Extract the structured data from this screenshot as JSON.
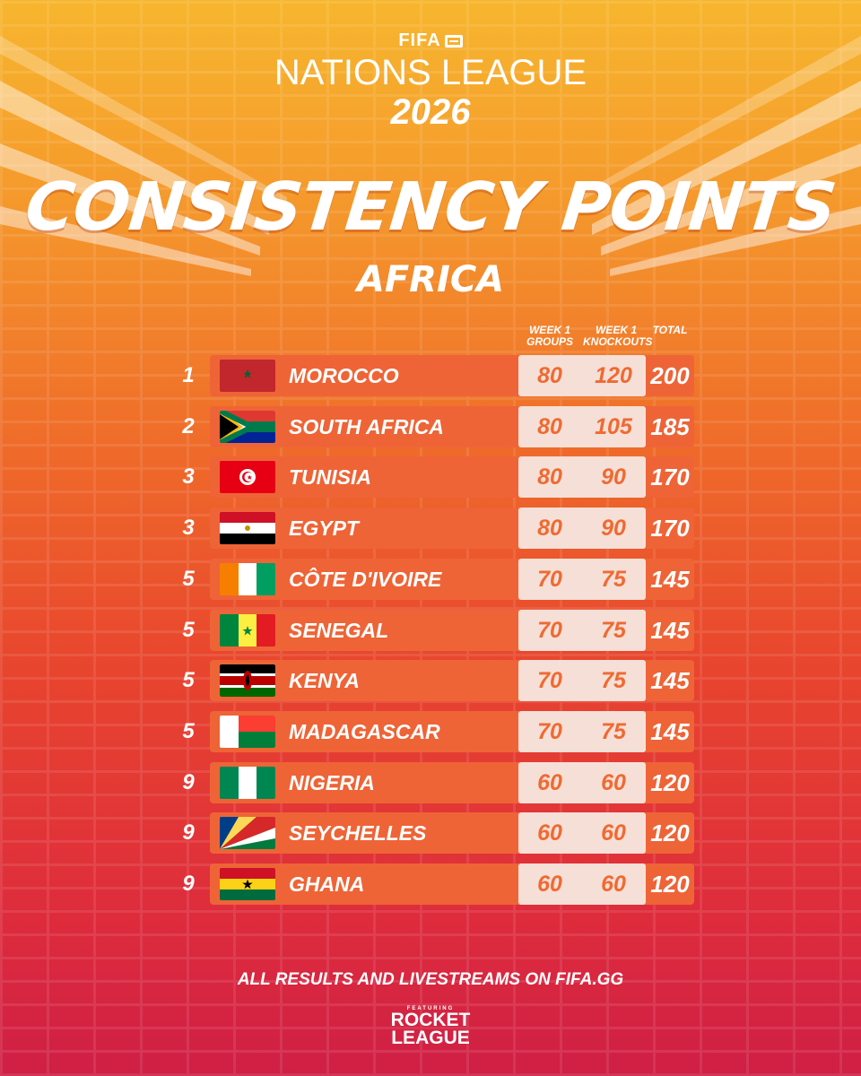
{
  "header": {
    "brand": "FIFA",
    "league_name": "NATIONS LEAGUE",
    "year": "2026",
    "title": "CONSISTENCY POINTS",
    "region": "AFRICA"
  },
  "columns": {
    "groups": "WEEK 1 GROUPS",
    "knockouts": "WEEK 1 KNOCKOUTS",
    "total": "TOTAL"
  },
  "rows": [
    {
      "rank": "1",
      "country": "MOROCCO",
      "flag": "morocco-flag-icon",
      "groups": "80",
      "knockouts": "120",
      "total": "200"
    },
    {
      "rank": "2",
      "country": "SOUTH AFRICA",
      "flag": "south-africa-flag-icon",
      "groups": "80",
      "knockouts": "105",
      "total": "185"
    },
    {
      "rank": "3",
      "country": "TUNISIA",
      "flag": "tunisia-flag-icon",
      "groups": "80",
      "knockouts": "90",
      "total": "170"
    },
    {
      "rank": "3",
      "country": "EGYPT",
      "flag": "egypt-flag-icon",
      "groups": "80",
      "knockouts": "90",
      "total": "170"
    },
    {
      "rank": "5",
      "country": "CÔTE D'IVOIRE",
      "flag": "cote-divoire-flag-icon",
      "groups": "70",
      "knockouts": "75",
      "total": "145"
    },
    {
      "rank": "5",
      "country": "SENEGAL",
      "flag": "senegal-flag-icon",
      "groups": "70",
      "knockouts": "75",
      "total": "145"
    },
    {
      "rank": "5",
      "country": "KENYA",
      "flag": "kenya-flag-icon",
      "groups": "70",
      "knockouts": "75",
      "total": "145"
    },
    {
      "rank": "5",
      "country": "MADAGASCAR",
      "flag": "madagascar-flag-icon",
      "groups": "70",
      "knockouts": "75",
      "total": "145"
    },
    {
      "rank": "9",
      "country": "NIGERIA",
      "flag": "nigeria-flag-icon",
      "groups": "60",
      "knockouts": "60",
      "total": "120"
    },
    {
      "rank": "9",
      "country": "SEYCHELLES",
      "flag": "seychelles-flag-icon",
      "groups": "60",
      "knockouts": "60",
      "total": "120"
    },
    {
      "rank": "9",
      "country": "GHANA",
      "flag": "ghana-flag-icon",
      "groups": "60",
      "knockouts": "60",
      "total": "120"
    }
  ],
  "footer": {
    "cta": "ALL RESULTS AND LIVESTREAMS ON FIFA.GG",
    "featuring": "FEATURING",
    "partner_line1": "ROCKET",
    "partner_line2": "LEAGUE"
  },
  "colors": {
    "row_bg": "#ee6437",
    "points_box": "#f6dfd6",
    "points_text": "#ef6a32"
  }
}
